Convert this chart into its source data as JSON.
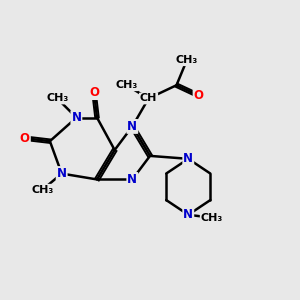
{
  "background_color": "#e8e8e8",
  "bond_color": "#000000",
  "n_color": "#0000cc",
  "o_color": "#ff0000",
  "font_size": 8.5,
  "fig_size": [
    3.0,
    3.0
  ],
  "dpi": 100,
  "xlim": [
    0,
    10
  ],
  "ylim": [
    0,
    10
  ]
}
